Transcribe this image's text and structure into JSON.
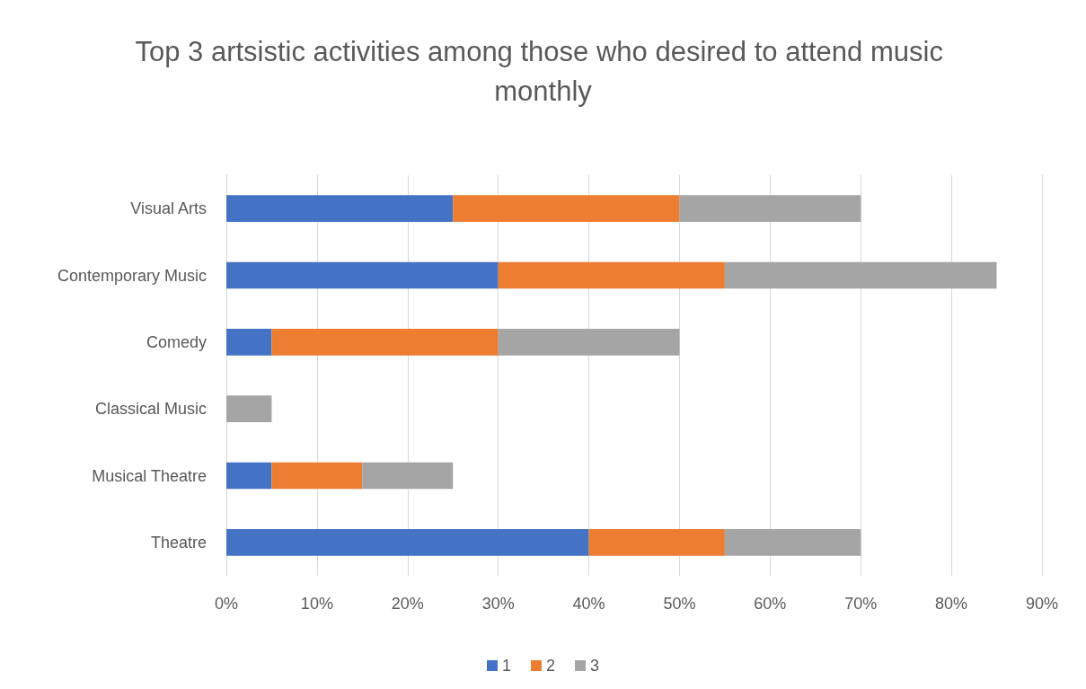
{
  "chart_data": {
    "type": "bar",
    "orientation": "horizontal",
    "stacked": true,
    "title": "Top 3 artsistic activities among those who desired to attend music monthly",
    "categories": [
      "Visual Arts",
      "Contemporary Music",
      "Comedy",
      "Classical Music",
      "Musical Theatre",
      "Theatre"
    ],
    "series": [
      {
        "name": "1",
        "color": "#4472c4",
        "values": [
          25,
          30,
          5,
          0,
          5,
          40
        ]
      },
      {
        "name": "2",
        "color": "#ed7d31",
        "values": [
          25,
          25,
          25,
          0,
          10,
          15
        ]
      },
      {
        "name": "3",
        "color": "#a5a5a5",
        "values": [
          20,
          30,
          20,
          5,
          10,
          15
        ]
      }
    ],
    "xlim": [
      0,
      90
    ],
    "xticks": [
      {
        "value": 0,
        "label": "0%"
      },
      {
        "value": 10,
        "label": "10%"
      },
      {
        "value": 20,
        "label": "20%"
      },
      {
        "value": 30,
        "label": "30%"
      },
      {
        "value": 40,
        "label": "40%"
      },
      {
        "value": 50,
        "label": "50%"
      },
      {
        "value": 60,
        "label": "60%"
      },
      {
        "value": 70,
        "label": "70%"
      },
      {
        "value": 80,
        "label": "80%"
      },
      {
        "value": 90,
        "label": "90%"
      }
    ],
    "grid": "x",
    "legend": "bottom"
  }
}
